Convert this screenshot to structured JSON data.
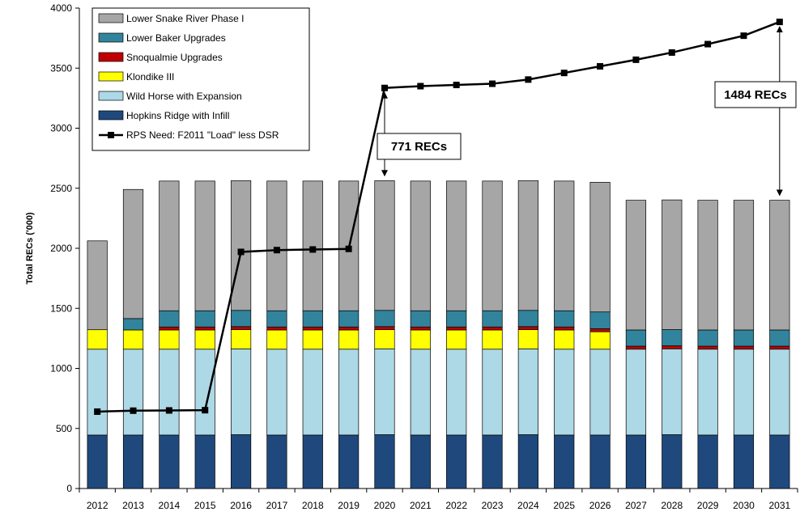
{
  "chart_data": {
    "type": "bar",
    "stacked": true,
    "ylabel": "Total RECs ('000)",
    "ylim": [
      0,
      4000
    ],
    "yticks": [
      0,
      500,
      1000,
      1500,
      2000,
      2500,
      3000,
      3500,
      4000
    ],
    "grid": false,
    "legend_position": "top-left",
    "categories": [
      "2012",
      "2013",
      "2014",
      "2015",
      "2016",
      "2017",
      "2018",
      "2019",
      "2020",
      "2021",
      "2022",
      "2023",
      "2024",
      "2025",
      "2026",
      "2027",
      "2028",
      "2029",
      "2030",
      "2031"
    ],
    "series": [
      {
        "name": "Hopkins Ridge with Infill",
        "color": "#1f497d",
        "values": [
          445,
          445,
          445,
          445,
          448,
          445,
          445,
          445,
          448,
          445,
          445,
          445,
          448,
          445,
          445,
          445,
          448,
          445,
          445,
          445
        ]
      },
      {
        "name": "Wild Horse with Expansion",
        "color": "#add8e6",
        "values": [
          715,
          715,
          715,
          715,
          715,
          715,
          715,
          715,
          715,
          715,
          715,
          715,
          715,
          715,
          715,
          715,
          715,
          715,
          715,
          715
        ]
      },
      {
        "name": "Klondike III",
        "color": "#ffff00",
        "values": [
          162,
          160,
          160,
          160,
          160,
          160,
          160,
          160,
          160,
          160,
          160,
          160,
          160,
          160,
          145,
          0,
          0,
          0,
          0,
          0
        ]
      },
      {
        "name": "Snoqualmie Upgrades",
        "color": "#c00000",
        "values": [
          0,
          0,
          25,
          25,
          25,
          25,
          25,
          25,
          25,
          25,
          25,
          25,
          25,
          25,
          25,
          25,
          25,
          25,
          25,
          25
        ]
      },
      {
        "name": "Lower Baker Upgrades",
        "color": "#31849b",
        "values": [
          0,
          95,
          135,
          135,
          135,
          135,
          135,
          135,
          135,
          135,
          135,
          135,
          135,
          135,
          140,
          135,
          135,
          135,
          135,
          135
        ]
      },
      {
        "name": "Lower Snake River Phase I",
        "color": "#a6a6a6",
        "values": [
          740,
          1075,
          1080,
          1080,
          1080,
          1080,
          1080,
          1080,
          1080,
          1080,
          1080,
          1080,
          1080,
          1080,
          1080,
          1080,
          1080,
          1080,
          1080,
          1080
        ]
      }
    ],
    "line": {
      "name": "RPS Need: F2011 \"Load\" less DSR",
      "color": "#000000",
      "values": [
        640,
        648,
        650,
        652,
        1970,
        1985,
        1990,
        1995,
        3335,
        3350,
        3360,
        3370,
        3405,
        3460,
        3515,
        3570,
        3630,
        3700,
        3770,
        3885
      ]
    },
    "annotations": [
      {
        "text": "771 RECs",
        "category": "2020",
        "from": 3335,
        "to": 2564
      },
      {
        "text": "1484 RECs",
        "category": "2031",
        "from": 3885,
        "to": 2401
      }
    ]
  }
}
